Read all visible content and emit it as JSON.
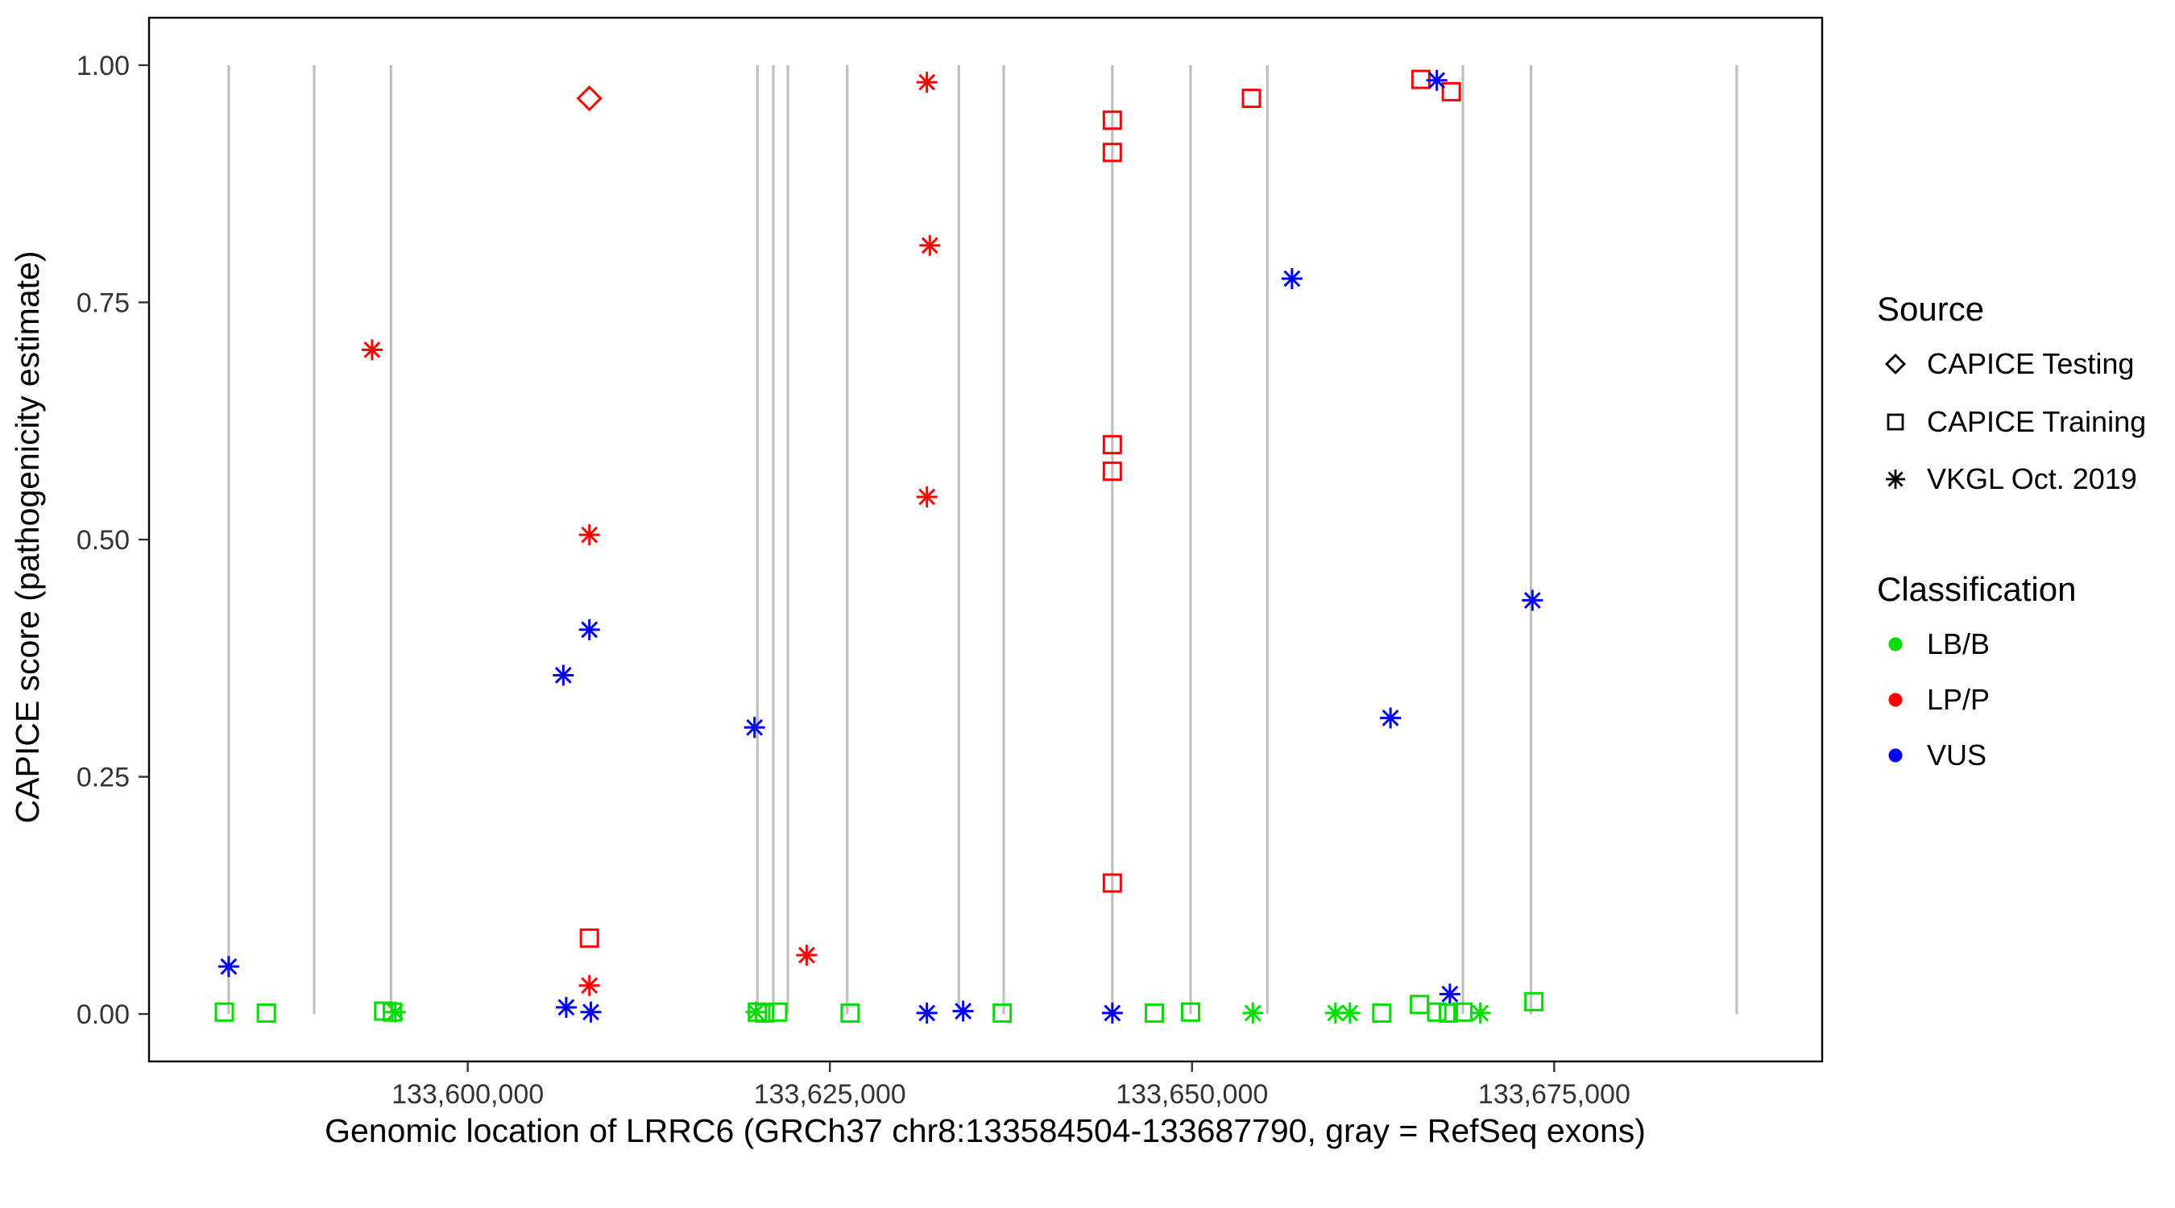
{
  "legend": {
    "source_title": "Source",
    "source_items": [
      {
        "label": "CAPICE Testing",
        "shape": "diamond"
      },
      {
        "label": "CAPICE Training",
        "shape": "square"
      },
      {
        "label": "VKGL Oct. 2019",
        "shape": "asterisk"
      }
    ],
    "classification_title": "Classification",
    "classification_items": [
      {
        "label": "LB/B",
        "color": "#00dd00"
      },
      {
        "label": "LP/P",
        "color": "#ff0000"
      },
      {
        "label": "VUS",
        "color": "#0000ff"
      }
    ]
  },
  "chart_data": {
    "type": "scatter",
    "title": "",
    "xlabel": "Genomic location of LRRC6 (GRCh37 chr8:133584504-133687790, gray = RefSeq exons)",
    "ylabel": "CAPICE score (pathogenicity estimate)",
    "x_domain": [
      133578000,
      133693500
    ],
    "y_domain": [
      0,
      1
    ],
    "x_ticks": [
      {
        "value": 133600000,
        "label": "133,600,000"
      },
      {
        "value": 133625000,
        "label": "133,625,000"
      },
      {
        "value": 133650000,
        "label": "133,650,000"
      },
      {
        "value": 133675000,
        "label": "133,675,000"
      }
    ],
    "y_ticks": [
      {
        "value": 0,
        "label": "0.00"
      },
      {
        "value": 0.25,
        "label": "0.25"
      },
      {
        "value": 0.5,
        "label": "0.50"
      },
      {
        "value": 0.75,
        "label": "0.75"
      },
      {
        "value": 1,
        "label": "1.00"
      }
    ],
    "exon_color": "#bfbfbf",
    "exon_lines_x": [
      133583500,
      133589400,
      133594700,
      133620000,
      133621100,
      133622100,
      133626200,
      133633900,
      133637000,
      133644500,
      133649900,
      133655200,
      133668700,
      133673400,
      133687600
    ],
    "shape_by_source": {
      "CAPICE Testing": "diamond",
      "CAPICE Training": "square",
      "VKGL Oct. 2019": "asterisk"
    },
    "color_by_classification": {
      "LB/B": "#00dd00",
      "LP/P": "#ff0000",
      "VUS": "#0000ff"
    },
    "points": [
      {
        "x": 133608400,
        "y": 0.965,
        "src": "CAPICE Testing",
        "cls": "LP/P"
      },
      {
        "x": 133593400,
        "y": 0.7,
        "src": "VKGL Oct. 2019",
        "cls": "LP/P"
      },
      {
        "x": 133608400,
        "y": 0.505,
        "src": "VKGL Oct. 2019",
        "cls": "LP/P"
      },
      {
        "x": 133631700,
        "y": 0.982,
        "src": "VKGL Oct. 2019",
        "cls": "LP/P"
      },
      {
        "x": 133631900,
        "y": 0.81,
        "src": "VKGL Oct. 2019",
        "cls": "LP/P"
      },
      {
        "x": 133631700,
        "y": 0.545,
        "src": "VKGL Oct. 2019",
        "cls": "LP/P"
      },
      {
        "x": 133623400,
        "y": 0.062,
        "src": "VKGL Oct. 2019",
        "cls": "LP/P"
      },
      {
        "x": 133608400,
        "y": 0.03,
        "src": "VKGL Oct. 2019",
        "cls": "LP/P"
      },
      {
        "x": 133644500,
        "y": 0.942,
        "src": "CAPICE Training",
        "cls": "LP/P"
      },
      {
        "x": 133644500,
        "y": 0.908,
        "src": "CAPICE Training",
        "cls": "LP/P"
      },
      {
        "x": 133644500,
        "y": 0.6,
        "src": "CAPICE Training",
        "cls": "LP/P"
      },
      {
        "x": 133644500,
        "y": 0.572,
        "src": "CAPICE Training",
        "cls": "LP/P"
      },
      {
        "x": 133644500,
        "y": 0.138,
        "src": "CAPICE Training",
        "cls": "LP/P"
      },
      {
        "x": 133654100,
        "y": 0.965,
        "src": "CAPICE Training",
        "cls": "LP/P"
      },
      {
        "x": 133665800,
        "y": 0.985,
        "src": "CAPICE Training",
        "cls": "LP/P"
      },
      {
        "x": 133667900,
        "y": 0.972,
        "src": "CAPICE Training",
        "cls": "LP/P"
      },
      {
        "x": 133608400,
        "y": 0.08,
        "src": "CAPICE Training",
        "cls": "LP/P"
      },
      {
        "x": 133666900,
        "y": 0.984,
        "src": "VKGL Oct. 2019",
        "cls": "VUS"
      },
      {
        "x": 133656900,
        "y": 0.775,
        "src": "VKGL Oct. 2019",
        "cls": "VUS"
      },
      {
        "x": 133673500,
        "y": 0.436,
        "src": "VKGL Oct. 2019",
        "cls": "VUS"
      },
      {
        "x": 133663700,
        "y": 0.312,
        "src": "VKGL Oct. 2019",
        "cls": "VUS"
      },
      {
        "x": 133608400,
        "y": 0.405,
        "src": "VKGL Oct. 2019",
        "cls": "VUS"
      },
      {
        "x": 133606600,
        "y": 0.357,
        "src": "VKGL Oct. 2019",
        "cls": "VUS"
      },
      {
        "x": 133619800,
        "y": 0.302,
        "src": "VKGL Oct. 2019",
        "cls": "VUS"
      },
      {
        "x": 133583500,
        "y": 0.05,
        "src": "VKGL Oct. 2019",
        "cls": "VUS"
      },
      {
        "x": 133667800,
        "y": 0.021,
        "src": "VKGL Oct. 2019",
        "cls": "VUS"
      },
      {
        "x": 133606800,
        "y": 0.007,
        "src": "VKGL Oct. 2019",
        "cls": "VUS"
      },
      {
        "x": 133608500,
        "y": 0.002,
        "src": "VKGL Oct. 2019",
        "cls": "VUS"
      },
      {
        "x": 133631700,
        "y": 0.001,
        "src": "VKGL Oct. 2019",
        "cls": "VUS"
      },
      {
        "x": 133634200,
        "y": 0.003,
        "src": "VKGL Oct. 2019",
        "cls": "VUS"
      },
      {
        "x": 133644500,
        "y": 0.001,
        "src": "VKGL Oct. 2019",
        "cls": "VUS"
      },
      {
        "x": 133583200,
        "y": 0.002,
        "src": "CAPICE Training",
        "cls": "LB/B"
      },
      {
        "x": 133586100,
        "y": 0.001,
        "src": "CAPICE Training",
        "cls": "LB/B"
      },
      {
        "x": 133594200,
        "y": 0.003,
        "src": "CAPICE Training",
        "cls": "LB/B"
      },
      {
        "x": 133594800,
        "y": 0.002,
        "src": "CAPICE Training",
        "cls": "LB/B"
      },
      {
        "x": 133620000,
        "y": 0.002,
        "src": "CAPICE Training",
        "cls": "LB/B"
      },
      {
        "x": 133620500,
        "y": 0.001,
        "src": "CAPICE Training",
        "cls": "LB/B"
      },
      {
        "x": 133621400,
        "y": 0.002,
        "src": "CAPICE Training",
        "cls": "LB/B"
      },
      {
        "x": 133626400,
        "y": 0.001,
        "src": "CAPICE Training",
        "cls": "LB/B"
      },
      {
        "x": 133636900,
        "y": 0.001,
        "src": "CAPICE Training",
        "cls": "LB/B"
      },
      {
        "x": 133647400,
        "y": 0.001,
        "src": "CAPICE Training",
        "cls": "LB/B"
      },
      {
        "x": 133649900,
        "y": 0.002,
        "src": "CAPICE Training",
        "cls": "LB/B"
      },
      {
        "x": 133663100,
        "y": 0.001,
        "src": "CAPICE Training",
        "cls": "LB/B"
      },
      {
        "x": 133665700,
        "y": 0.01,
        "src": "CAPICE Training",
        "cls": "LB/B"
      },
      {
        "x": 133666900,
        "y": 0.002,
        "src": "CAPICE Training",
        "cls": "LB/B"
      },
      {
        "x": 133667700,
        "y": 0.001,
        "src": "CAPICE Training",
        "cls": "LB/B"
      },
      {
        "x": 133668700,
        "y": 0.002,
        "src": "CAPICE Training",
        "cls": "LB/B"
      },
      {
        "x": 133673600,
        "y": 0.013,
        "src": "CAPICE Training",
        "cls": "LB/B"
      },
      {
        "x": 133595000,
        "y": 0.002,
        "src": "VKGL Oct. 2019",
        "cls": "LB/B"
      },
      {
        "x": 133619900,
        "y": 0.002,
        "src": "VKGL Oct. 2019",
        "cls": "LB/B"
      },
      {
        "x": 133654200,
        "y": 0.001,
        "src": "VKGL Oct. 2019",
        "cls": "LB/B"
      },
      {
        "x": 133659900,
        "y": 0.001,
        "src": "VKGL Oct. 2019",
        "cls": "LB/B"
      },
      {
        "x": 133660900,
        "y": 0.001,
        "src": "VKGL Oct. 2019",
        "cls": "LB/B"
      },
      {
        "x": 133669900,
        "y": 0.001,
        "src": "VKGL Oct. 2019",
        "cls": "LB/B"
      }
    ]
  }
}
